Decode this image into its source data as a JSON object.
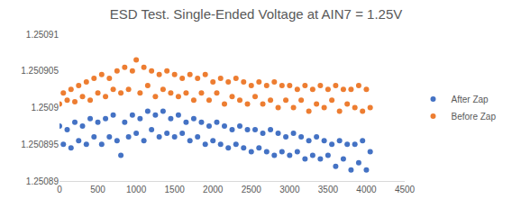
{
  "chart_data": {
    "type": "scatter",
    "title": "ESD Test. Single-Ended Voltage at AIN7 = 1.25V",
    "x": [
      0,
      50,
      100,
      150,
      200,
      250,
      300,
      350,
      400,
      450,
      500,
      550,
      600,
      650,
      700,
      750,
      800,
      850,
      900,
      950,
      1000,
      1050,
      1100,
      1150,
      1200,
      1250,
      1300,
      1350,
      1400,
      1450,
      1500,
      1550,
      1600,
      1650,
      1700,
      1750,
      1800,
      1850,
      1900,
      1950,
      2000,
      2050,
      2100,
      2150,
      2200,
      2250,
      2300,
      2350,
      2400,
      2450,
      2500,
      2550,
      2600,
      2650,
      2700,
      2750,
      2800,
      2850,
      2900,
      2950,
      3000,
      3050,
      3100,
      3150,
      3200,
      3250,
      3300,
      3350,
      3400,
      3450,
      3500,
      3550,
      3600,
      3650,
      3700,
      3750,
      3800,
      3850,
      3900,
      3950,
      4000,
      4050
    ],
    "series": [
      {
        "name": "After Zap",
        "color": "#4472c4",
        "values": [
          1.2508975,
          1.250895,
          1.250897,
          1.2508945,
          1.250898,
          1.2508955,
          1.2508975,
          1.250895,
          1.2508985,
          1.250896,
          1.250898,
          1.250895,
          1.2508985,
          1.250896,
          1.250899,
          1.2508955,
          1.2508935,
          1.250898,
          1.250896,
          1.250899,
          1.2508965,
          1.2508985,
          1.2508955,
          1.2508995,
          1.250897,
          1.250899,
          1.250896,
          1.2508995,
          1.2508965,
          1.2508985,
          1.250896,
          1.250899,
          1.2508965,
          1.250898,
          1.2508955,
          1.2508985,
          1.250896,
          1.250898,
          1.250895,
          1.2508975,
          1.2508955,
          1.250898,
          1.250895,
          1.2508975,
          1.2508945,
          1.250897,
          1.250895,
          1.2508975,
          1.2508945,
          1.250897,
          1.250894,
          1.250897,
          1.2508945,
          1.2508965,
          1.250894,
          1.250897,
          1.2508935,
          1.2508965,
          1.250894,
          1.250896,
          1.2508935,
          1.2508965,
          1.250894,
          1.250896,
          1.250893,
          1.2508955,
          1.2508935,
          1.250896,
          1.250893,
          1.2508955,
          1.2508935,
          1.250895,
          1.250892,
          1.2508955,
          1.250893,
          1.250895,
          1.2508915,
          1.250895,
          1.2508925,
          1.2508955,
          1.2508915,
          1.250894
        ]
      },
      {
        "name": "Before Zap",
        "color": "#ed7d31",
        "values": [
          1.2509005,
          1.250902,
          1.250901,
          1.2509025,
          1.2509008,
          1.250903,
          1.2509015,
          1.2509035,
          1.250901,
          1.250904,
          1.250902,
          1.2509045,
          1.2509015,
          1.250904,
          1.2509025,
          1.250905,
          1.250902,
          1.2509055,
          1.2509025,
          1.250905,
          1.2509065,
          1.250902,
          1.2509055,
          1.250903,
          1.250905,
          1.2509015,
          1.2509045,
          1.2509025,
          1.250905,
          1.250902,
          1.2509045,
          1.2509015,
          1.250904,
          1.250902,
          1.2509045,
          1.250901,
          1.250904,
          1.250902,
          1.2509045,
          1.250901,
          1.2509035,
          1.250902,
          1.250904,
          1.2509005,
          1.2509035,
          1.2509015,
          1.250904,
          1.250901,
          1.2509035,
          1.2509005,
          1.250903,
          1.2509015,
          1.2509035,
          1.2509005,
          1.250903,
          1.250901,
          1.2509035,
          1.2509,
          1.250903,
          1.250901,
          1.250903,
          1.2509,
          1.2509025,
          1.250901,
          1.250903,
          1.2508995,
          1.2509025,
          1.2509005,
          1.250903,
          1.2509,
          1.2509025,
          1.250901,
          1.250903,
          1.2508995,
          1.2509025,
          1.2509005,
          1.2509025,
          1.2509,
          1.250903,
          1.2508995,
          1.2509025,
          1.2509
        ]
      }
    ],
    "xlim": [
      0,
      4500
    ],
    "xticks": [
      0,
      500,
      1000,
      1500,
      2000,
      2500,
      3000,
      3500,
      4000,
      4500
    ],
    "ylim": [
      1.25089,
      1.25091
    ],
    "yticks": [
      1.25089,
      1.250895,
      1.2509,
      1.250905,
      1.25091
    ],
    "grid": false,
    "legend": "right",
    "marker": "circle"
  }
}
